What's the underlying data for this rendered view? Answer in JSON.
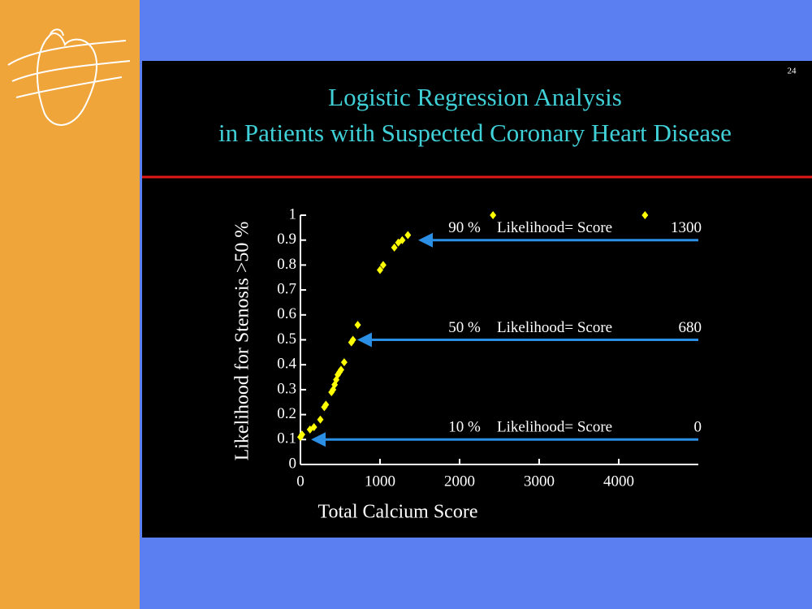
{
  "slide_number": "24",
  "chart_data": {
    "type": "scatter",
    "title": [
      "Logistic Regression Analysis",
      "in Patients with Suspected Coronary Heart Disease"
    ],
    "x_label": "Total Calcium Score",
    "y_label": "Likelihood for Stenosis >50 %",
    "x": [
      0,
      20,
      120,
      170,
      250,
      300,
      320,
      390,
      410,
      430,
      450,
      470,
      490,
      510,
      550,
      640,
      660,
      720,
      1000,
      1040,
      1180,
      1230,
      1280,
      1350,
      2420,
      4330
    ],
    "values": [
      0.11,
      0.12,
      0.14,
      0.15,
      0.18,
      0.23,
      0.24,
      0.29,
      0.3,
      0.32,
      0.34,
      0.36,
      0.37,
      0.38,
      0.41,
      0.49,
      0.5,
      0.56,
      0.78,
      0.8,
      0.87,
      0.89,
      0.9,
      0.92,
      1,
      1
    ],
    "color": "#ffff00",
    "xlim": [
      0,
      5000
    ],
    "ylim": [
      0,
      1
    ],
    "xticks": [
      0,
      1000,
      2000,
      3000,
      4000
    ],
    "yticks": [
      0,
      0.1,
      0.2,
      0.3,
      0.4,
      0.5,
      0.6,
      0.7,
      0.8,
      0.9,
      1
    ],
    "annotations": [
      {
        "likelihood": "90 %",
        "text": "Likelihood= Score",
        "score": "1300",
        "y": 0.9,
        "x": 1480
      },
      {
        "likelihood": "50 %",
        "text": "Likelihood= Score",
        "score": "680",
        "y": 0.5,
        "x": 714
      },
      {
        "likelihood": "10 %",
        "text": "Likelihood= Score",
        "score": "0",
        "y": 0.1,
        "x": 133
      }
    ],
    "annotation_color": "#2b8fe6"
  }
}
